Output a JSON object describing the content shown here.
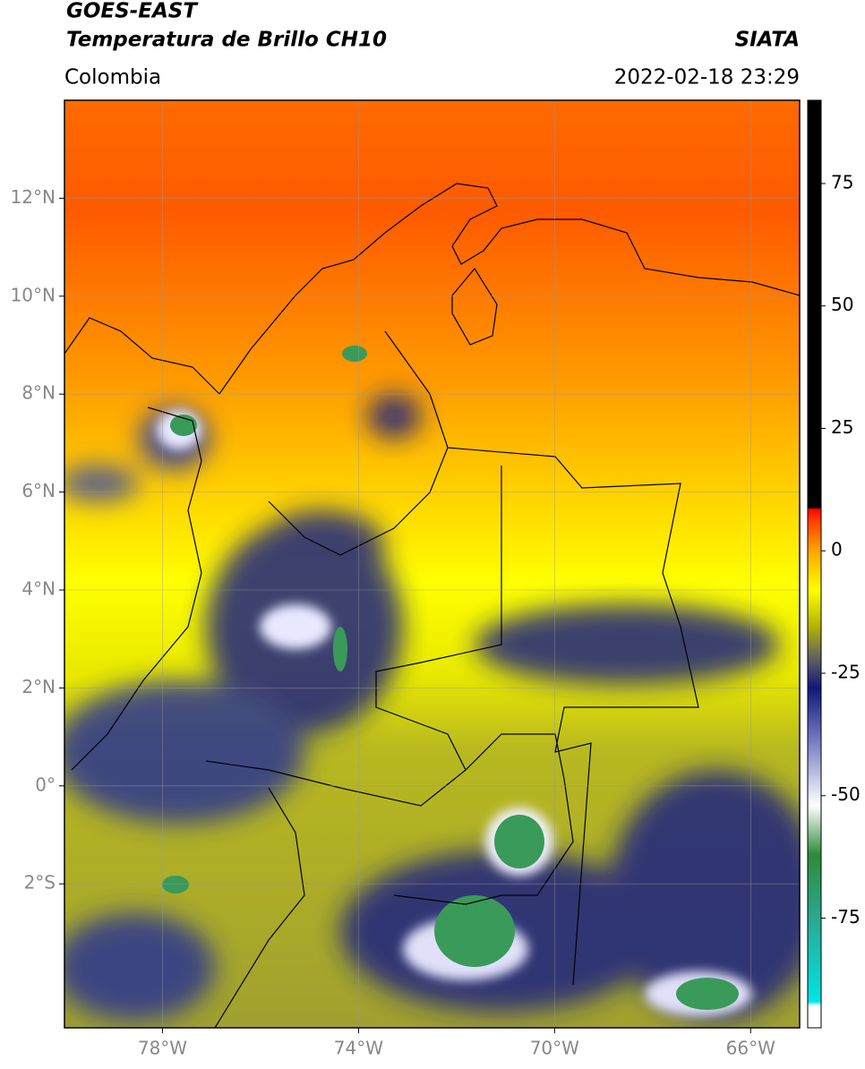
{
  "header": {
    "title": "GOES-EAST",
    "subtitle": "Temperatura de Brillo CH10",
    "source": "SIATA",
    "region": "Colombia",
    "datetime": "2022-02-18 23:29"
  },
  "map": {
    "xlim": [
      -80,
      -65
    ],
    "ylim": [
      -4.94,
      14
    ],
    "xticks": [
      {
        "value": -78,
        "label": "78°W"
      },
      {
        "value": -74,
        "label": "74°W"
      },
      {
        "value": -70,
        "label": "70°W"
      },
      {
        "value": -66,
        "label": "66°W"
      }
    ],
    "yticks": [
      {
        "value": 12,
        "label": "12°N"
      },
      {
        "value": 10,
        "label": "10°N"
      },
      {
        "value": 8,
        "label": "8°N"
      },
      {
        "value": 6,
        "label": "6°N"
      },
      {
        "value": 4,
        "label": "4°N"
      },
      {
        "value": 2,
        "label": "2°N"
      },
      {
        "value": 0,
        "label": "0°"
      },
      {
        "value": -2,
        "label": "2°S"
      }
    ],
    "grid": true
  },
  "colorbar": {
    "clim": [
      -97.4,
      92
    ],
    "ticks": [
      75,
      50,
      25,
      0,
      -25,
      -50,
      -75
    ],
    "colormap": [
      {
        "value": -97.4,
        "color": "#ffffff"
      },
      {
        "value": -93,
        "color": "#ffffff"
      },
      {
        "value": -92,
        "color": "#00e5e5"
      },
      {
        "value": -75,
        "color": "#2aa890"
      },
      {
        "value": -62,
        "color": "#2e8b3a"
      },
      {
        "value": -52,
        "color": "#ffffff"
      },
      {
        "value": -40,
        "color": "#8088c8"
      },
      {
        "value": -28,
        "color": "#101878"
      },
      {
        "value": -22,
        "color": "#606060"
      },
      {
        "value": -15,
        "color": "#b8b800"
      },
      {
        "value": -8,
        "color": "#ffff00"
      },
      {
        "value": 0,
        "color": "#ffa500"
      },
      {
        "value": 6,
        "color": "#ff4000"
      },
      {
        "value": 8.6,
        "color": "#ff0000"
      },
      {
        "value": 8.7,
        "color": "#000000"
      },
      {
        "value": 92,
        "color": "#000000"
      }
    ]
  }
}
